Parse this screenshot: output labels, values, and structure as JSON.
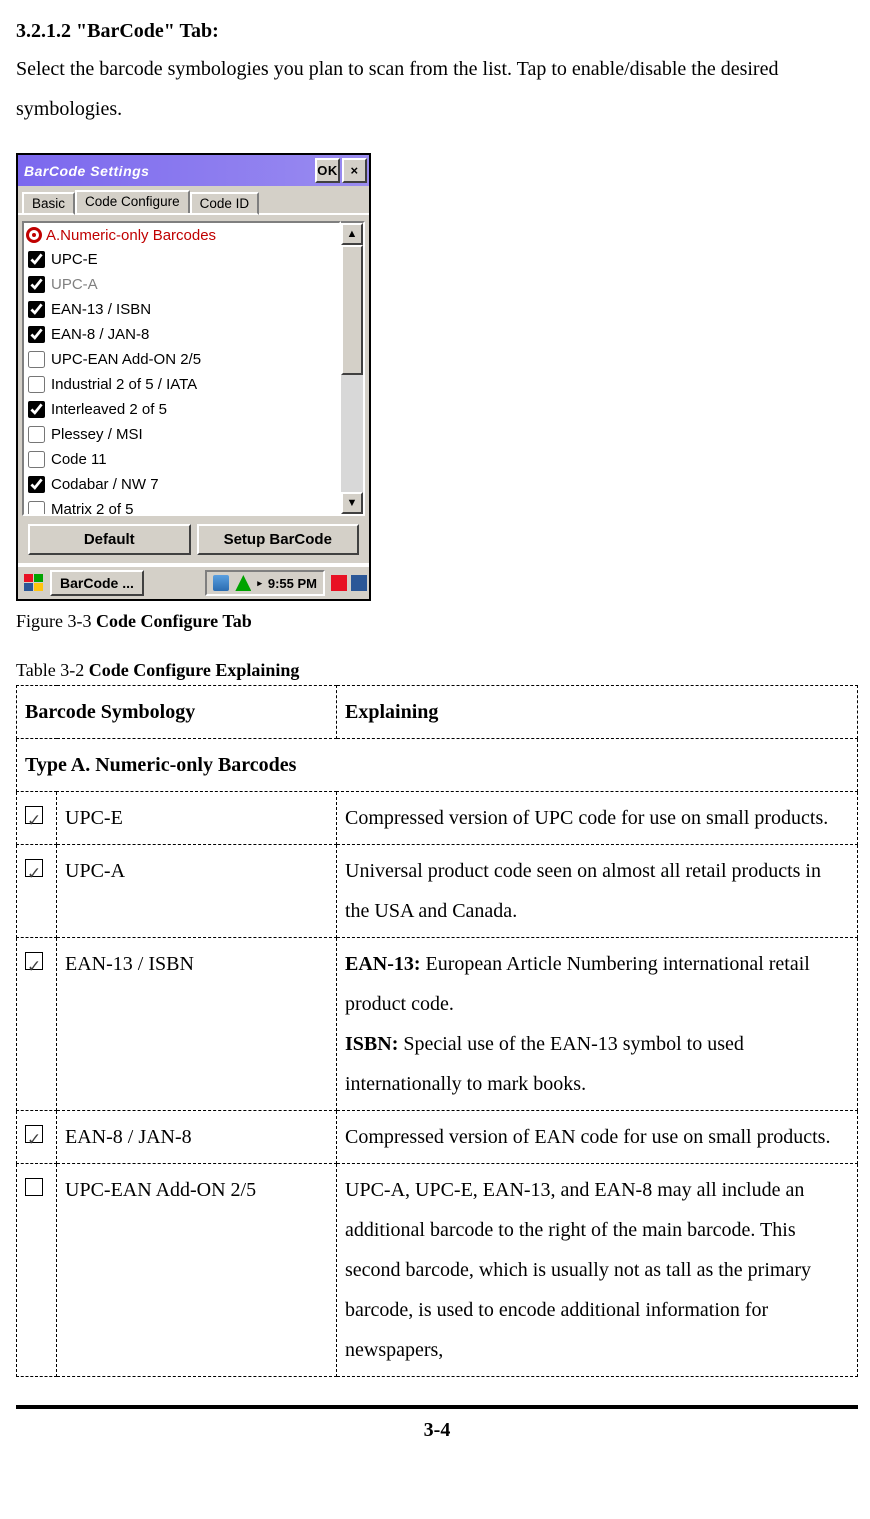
{
  "heading": {
    "number": "3.2.1.2",
    "title": "\"BarCode\" Tab:"
  },
  "intro": "Select the barcode symbologies you plan to scan from the list. Tap to enable/disable the desired symbologies.",
  "screenshot": {
    "titlebar": {
      "title": "BarCode Settings",
      "ok": "OK",
      "close": "×"
    },
    "tabs": {
      "basic": "Basic",
      "code_configure": "Code Configure",
      "code_id": "Code ID"
    },
    "category": "A.Numeric-only Barcodes",
    "items": [
      {
        "label": "UPC-E",
        "checked": true,
        "dim": false
      },
      {
        "label": "UPC-A",
        "checked": true,
        "dim": true
      },
      {
        "label": "EAN-13 / ISBN",
        "checked": true,
        "dim": false
      },
      {
        "label": "EAN-8 / JAN-8",
        "checked": true,
        "dim": false
      },
      {
        "label": "UPC-EAN Add-ON 2/5",
        "checked": false,
        "dim": false
      },
      {
        "label": "Industrial 2 of 5 / IATA",
        "checked": false,
        "dim": false
      },
      {
        "label": "Interleaved 2 of 5",
        "checked": true,
        "dim": false
      },
      {
        "label": "Plessey / MSI",
        "checked": false,
        "dim": false
      },
      {
        "label": "Code 11",
        "checked": false,
        "dim": false
      },
      {
        "label": "Codabar / NW 7",
        "checked": true,
        "dim": false
      },
      {
        "label": "Matrix 2 of 5",
        "checked": false,
        "dim": false
      }
    ],
    "buttons": {
      "default": "Default",
      "setup": "Setup BarCode"
    },
    "taskbar": {
      "app": "BarCode ...",
      "time": "9:55 PM"
    }
  },
  "figure_caption": {
    "prefix": "Figure 3-3 ",
    "bold": "Code Configure Tab"
  },
  "table_caption": {
    "prefix": "Table 3-2 ",
    "bold": "Code Configure Explaining"
  },
  "table": {
    "headers": {
      "symbology": "Barcode Symbology",
      "explaining": "Explaining"
    },
    "type_header": "Type A. Numeric-only Barcodes",
    "rows": [
      {
        "checked": true,
        "name": "UPC-E",
        "explain_html": "Compressed version of UPC code for use on small products."
      },
      {
        "checked": true,
        "name": "UPC-A",
        "explain_html": "Universal product code seen on almost all retail products in the USA and Canada."
      },
      {
        "checked": true,
        "name": "EAN-13 / ISBN",
        "explain_html": "<b>EAN-13:</b> European Article Numbering international retail product code.<br><b>ISBN:</b> Special use of the EAN-13 symbol to used internationally to mark books."
      },
      {
        "checked": true,
        "name": "EAN-8 / JAN-8",
        "explain_html": "Compressed version of EAN code for use on small products."
      },
      {
        "checked": false,
        "name": "UPC-EAN Add-ON 2/5",
        "explain_html": "UPC-A, UPC-E, EAN-13, and EAN-8 may all include an additional barcode to the right of the main barcode. This second barcode, which is usually not as tall as the primary barcode, is used to encode additional information for newspapers,"
      }
    ]
  },
  "page_number": "3-4"
}
